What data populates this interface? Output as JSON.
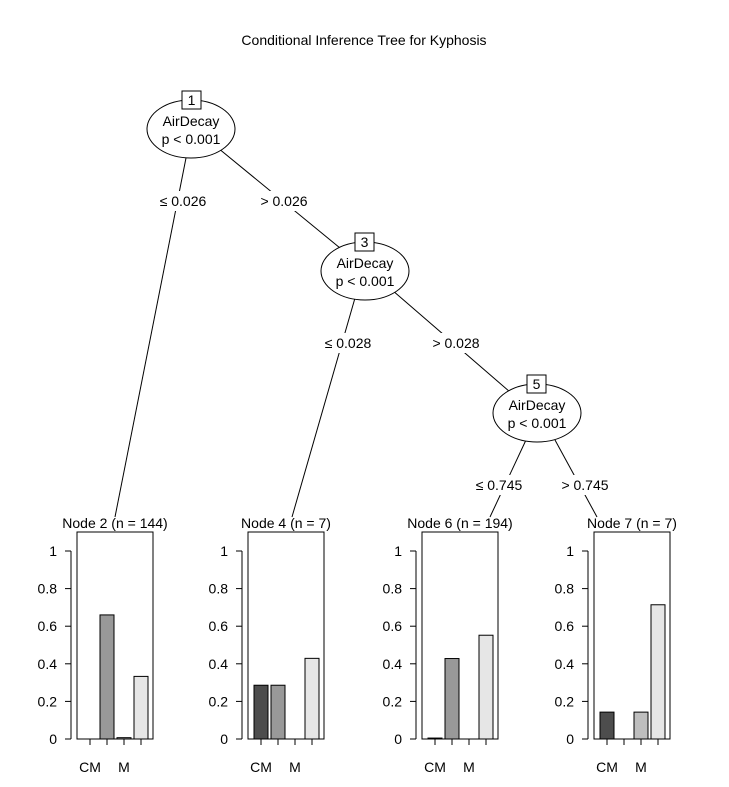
{
  "title": "Conditional Inference Tree for Kyphosis",
  "inner_nodes": [
    {
      "id": "1",
      "variable": "AirDecay",
      "pvalue": "p < 0.001"
    },
    {
      "id": "3",
      "variable": "AirDecay",
      "pvalue": "p < 0.001"
    },
    {
      "id": "5",
      "variable": "AirDecay",
      "pvalue": "p < 0.001"
    }
  ],
  "edges": [
    {
      "from": "1",
      "to": "2",
      "label": "≤ 0.026"
    },
    {
      "from": "1",
      "to": "3",
      "label": "> 0.026"
    },
    {
      "from": "3",
      "to": "4",
      "label": "≤ 0.028"
    },
    {
      "from": "3",
      "to": "5",
      "label": "> 0.028"
    },
    {
      "from": "5",
      "to": "6",
      "label": "≤ 0.745"
    },
    {
      "from": "5",
      "to": "7",
      "label": "> 0.745"
    }
  ],
  "axis_ticks": [
    "0",
    "0.2",
    "0.4",
    "0.6",
    "0.8",
    "1"
  ],
  "x_tick_labels": [
    "CM",
    "M"
  ],
  "bar_colors": [
    "#4d4d4d",
    "#999999",
    "#bebebe",
    "#e6e6e6"
  ],
  "chart_data": {
    "type": "bar",
    "ylim": [
      0,
      1
    ],
    "categories_visible_labels": [
      "CM",
      "",
      "M",
      ""
    ],
    "series": [
      {
        "name": "Node 2 (n = 144)",
        "values": [
          0.0,
          0.66,
          0.007,
          0.333
        ]
      },
      {
        "name": "Node 4 (n = 7)",
        "values": [
          0.286,
          0.286,
          0.0,
          0.429
        ]
      },
      {
        "name": "Node 6 (n = 194)",
        "values": [
          0.005,
          0.428,
          0.0,
          0.552
        ]
      },
      {
        "name": "Node 7 (n = 7)",
        "values": [
          0.143,
          0.0,
          0.143,
          0.714
        ]
      }
    ]
  }
}
